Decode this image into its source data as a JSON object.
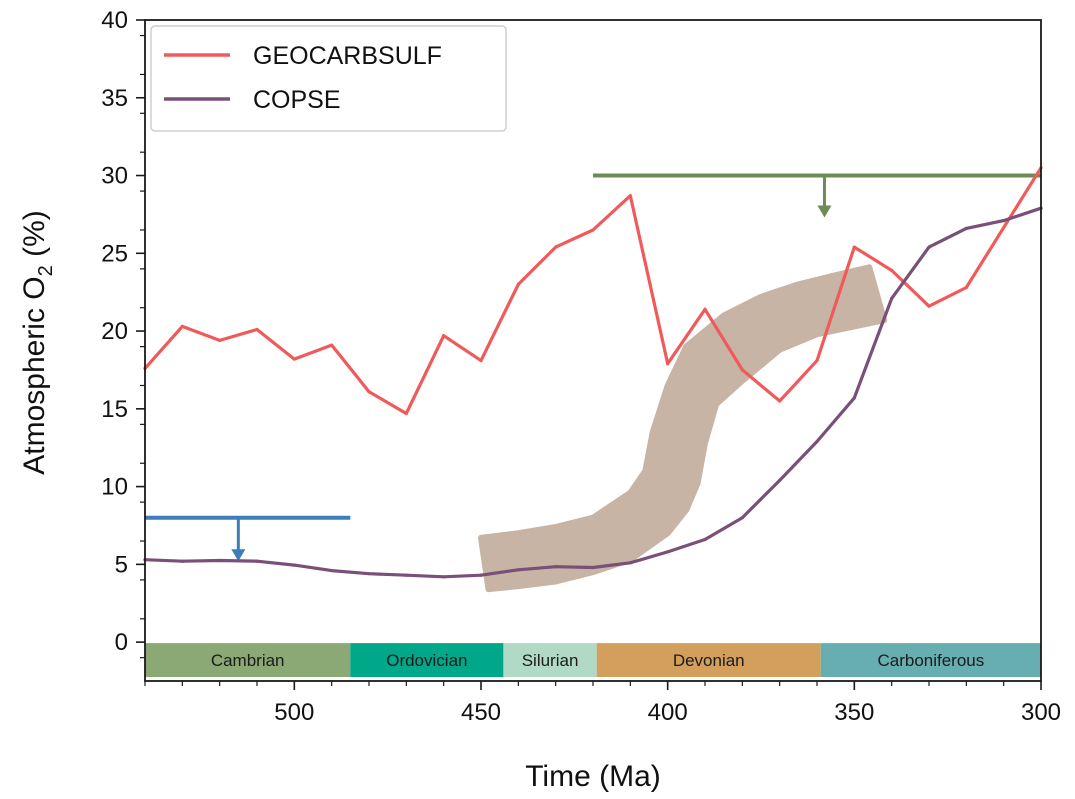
{
  "chart_data": {
    "type": "line",
    "title": "",
    "xlabel": "Time (Ma)",
    "ylabel_main": "Atmospheric O",
    "ylabel_sub": "2",
    "ylabel_tail": " (%)",
    "xlim": [
      540,
      300
    ],
    "ylim": [
      -2.5,
      40
    ],
    "x_reversed": true,
    "grid": false,
    "legend_position": "top-left",
    "x_ticks": [
      500,
      450,
      400,
      350,
      300
    ],
    "y_ticks": [
      0,
      5,
      10,
      15,
      20,
      25,
      30,
      35,
      40
    ],
    "series": [
      {
        "name": "GEOCARBSULF",
        "color": "#f05a5a",
        "points": [
          [
            540,
            17.6
          ],
          [
            530,
            20.3
          ],
          [
            520,
            19.4
          ],
          [
            510,
            20.1
          ],
          [
            500,
            18.2
          ],
          [
            490,
            19.1
          ],
          [
            480,
            16.1
          ],
          [
            470,
            14.7
          ],
          [
            460,
            19.7
          ],
          [
            450,
            18.1
          ],
          [
            440,
            23.0
          ],
          [
            430,
            25.4
          ],
          [
            420,
            26.5
          ],
          [
            410,
            28.7
          ],
          [
            400,
            17.9
          ],
          [
            390,
            21.4
          ],
          [
            380,
            17.5
          ],
          [
            370,
            15.5
          ],
          [
            360,
            18.1
          ],
          [
            350,
            25.4
          ],
          [
            340,
            23.9
          ],
          [
            330,
            21.6
          ],
          [
            320,
            22.8
          ],
          [
            300,
            30.5
          ]
        ]
      },
      {
        "name": "COPSE",
        "color": "#7a4f78",
        "points": [
          [
            540,
            5.3
          ],
          [
            530,
            5.2
          ],
          [
            520,
            5.25
          ],
          [
            510,
            5.2
          ],
          [
            500,
            4.95
          ],
          [
            490,
            4.6
          ],
          [
            480,
            4.4
          ],
          [
            470,
            4.3
          ],
          [
            460,
            4.2
          ],
          [
            450,
            4.3
          ],
          [
            440,
            4.65
          ],
          [
            430,
            4.85
          ],
          [
            420,
            4.8
          ],
          [
            410,
            5.1
          ],
          [
            400,
            5.8
          ],
          [
            390,
            6.6
          ],
          [
            380,
            8.0
          ],
          [
            370,
            10.4
          ],
          [
            360,
            12.9
          ],
          [
            350,
            15.7
          ],
          [
            340,
            22.1
          ],
          [
            330,
            25.4
          ],
          [
            320,
            26.6
          ],
          [
            310,
            27.1
          ],
          [
            300,
            27.9
          ]
        ]
      }
    ],
    "envelope": {
      "color": "#c7b4a4",
      "upper": [
        [
          450,
          6.7
        ],
        [
          440,
          7.0
        ],
        [
          430,
          7.4
        ],
        [
          420,
          8.0
        ],
        [
          410,
          9.6
        ],
        [
          406,
          11.0
        ],
        [
          404,
          13.5
        ],
        [
          400,
          16.5
        ],
        [
          395,
          19.0
        ],
        [
          385,
          21.0
        ],
        [
          375,
          22.2
        ],
        [
          365,
          23.0
        ],
        [
          355,
          23.6
        ],
        [
          346,
          24.1
        ]
      ],
      "lower": [
        [
          448,
          3.4
        ],
        [
          440,
          3.6
        ],
        [
          430,
          3.9
        ],
        [
          420,
          4.5
        ],
        [
          410,
          5.3
        ],
        [
          400,
          7.0
        ],
        [
          395,
          8.5
        ],
        [
          392,
          10.2
        ],
        [
          390,
          12.8
        ],
        [
          387,
          15.3
        ],
        [
          380,
          16.8
        ],
        [
          370,
          18.8
        ],
        [
          360,
          19.8
        ],
        [
          350,
          20.3
        ],
        [
          342,
          20.7
        ]
      ]
    },
    "upper_limits": [
      {
        "x_start": 540,
        "x_end": 485,
        "y": 8.0,
        "arrow_x": 515,
        "arrow_to": 5.2,
        "color": "#3d7dbb"
      },
      {
        "x_start": 420,
        "x_end": 300,
        "y": 30.0,
        "arrow_x": 358,
        "arrow_to": 27.3,
        "color": "#6c8c55"
      }
    ],
    "periods": [
      {
        "name": "Cambrian",
        "start": 540,
        "end": 485,
        "color": "#8aa974"
      },
      {
        "name": "Ordovician",
        "start": 485,
        "end": 444,
        "color": "#00a889"
      },
      {
        "name": "Silurian",
        "start": 444,
        "end": 419,
        "color": "#b0dac6"
      },
      {
        "name": "Devonian",
        "start": 419,
        "end": 359,
        "color": "#d29f5c"
      },
      {
        "name": "Carboniferous",
        "start": 359,
        "end": 300,
        "color": "#67aeb1"
      }
    ]
  }
}
